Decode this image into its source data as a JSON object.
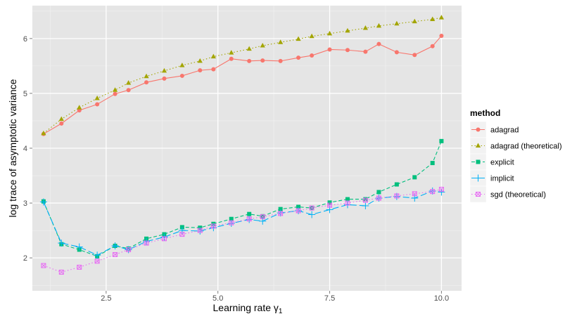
{
  "chart_data": {
    "type": "line",
    "xlabel": "Learning rate",
    "xlabel_symbol": "γ",
    "xlabel_subscript": "1",
    "ylabel": "log trace of asymptotic variance",
    "xlim": [
      0.85,
      10.45
    ],
    "ylim": [
      1.4,
      6.6
    ],
    "x_ticks": [
      2.5,
      5.0,
      7.5,
      10.0
    ],
    "x_tick_labels": [
      "2.5",
      "5.0",
      "7.5",
      "10.0"
    ],
    "y_ticks": [
      2,
      3,
      4,
      5,
      6
    ],
    "y_tick_labels": [
      "2",
      "3",
      "4",
      "5",
      "6"
    ],
    "grid": true,
    "legend_title": "method",
    "legend_position": "right",
    "x": [
      1.1,
      1.5,
      1.9,
      2.3,
      2.7,
      3.0,
      3.4,
      3.8,
      4.2,
      4.6,
      4.9,
      5.3,
      5.7,
      6.0,
      6.4,
      6.8,
      7.1,
      7.5,
      7.9,
      8.3,
      8.6,
      9.0,
      9.4,
      9.8,
      10.0
    ],
    "series": [
      {
        "name": "adagrad",
        "color": "#F8766D",
        "linetype": "solid",
        "marker": "circle",
        "values": [
          4.26,
          4.45,
          4.69,
          4.8,
          4.99,
          5.06,
          5.2,
          5.27,
          5.32,
          5.42,
          5.44,
          5.63,
          5.59,
          5.6,
          5.59,
          5.65,
          5.69,
          5.8,
          5.79,
          5.76,
          5.9,
          5.75,
          5.7,
          5.86,
          6.05
        ]
      },
      {
        "name": "adagrad (theoretical)",
        "color": "#A3A500",
        "linetype": "dotted",
        "marker": "triangle",
        "values": [
          4.27,
          4.53,
          4.74,
          4.91,
          5.06,
          5.19,
          5.31,
          5.41,
          5.51,
          5.59,
          5.67,
          5.74,
          5.81,
          5.87,
          5.93,
          5.99,
          6.04,
          6.09,
          6.14,
          6.19,
          6.23,
          6.27,
          6.31,
          6.35,
          6.38
        ]
      },
      {
        "name": "explicit",
        "color": "#00BF7D",
        "linetype": "dashed",
        "marker": "square",
        "values": [
          3.03,
          2.25,
          2.15,
          2.03,
          2.22,
          2.17,
          2.35,
          2.43,
          2.56,
          2.55,
          2.62,
          2.71,
          2.8,
          2.76,
          2.89,
          2.93,
          2.91,
          3.01,
          3.07,
          3.07,
          3.2,
          3.34,
          3.47,
          3.73,
          4.13
        ]
      },
      {
        "name": "implicit",
        "color": "#00B0F6",
        "linetype": "longdash",
        "marker": "plus",
        "values": [
          3.02,
          2.27,
          2.2,
          2.05,
          2.22,
          2.15,
          2.3,
          2.38,
          2.5,
          2.49,
          2.55,
          2.63,
          2.7,
          2.67,
          2.82,
          2.86,
          2.79,
          2.88,
          2.97,
          2.95,
          3.09,
          3.12,
          3.09,
          3.22,
          3.2
        ]
      },
      {
        "name": "sgd (theoretical)",
        "color": "#E76BF3",
        "linetype": "dotted",
        "marker": "boxx",
        "values": [
          1.86,
          1.74,
          1.83,
          1.94,
          2.06,
          2.15,
          2.27,
          2.35,
          2.43,
          2.5,
          2.58,
          2.64,
          2.71,
          2.75,
          2.81,
          2.86,
          2.91,
          2.96,
          3.0,
          3.05,
          3.09,
          3.13,
          3.17,
          3.21,
          3.25
        ]
      }
    ]
  }
}
